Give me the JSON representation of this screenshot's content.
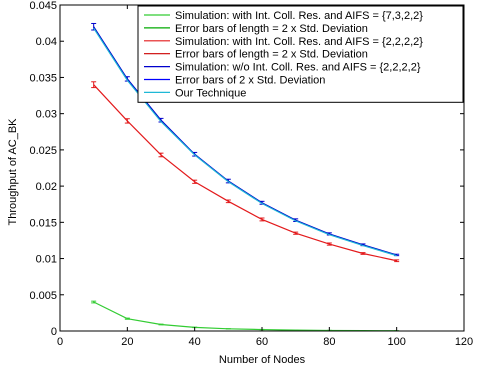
{
  "chart_data": {
    "type": "line",
    "title": "",
    "xlabel": "Number of Nodes",
    "ylabel": "Throughput of AC_BK",
    "xlim": [
      0,
      120
    ],
    "ylim": [
      0,
      0.045
    ],
    "xticks": [
      0,
      20,
      40,
      60,
      80,
      100,
      120
    ],
    "yticks": [
      0,
      0.005,
      0.01,
      0.015,
      0.02,
      0.025,
      0.03,
      0.035,
      0.04,
      0.045
    ],
    "xtick_labels": [
      "0",
      "20",
      "40",
      "60",
      "80",
      "100",
      "120"
    ],
    "ytick_labels": [
      "0",
      "0.005",
      "0.01",
      "0.015",
      "0.02",
      "0.025",
      "0.03",
      "0.035",
      "0.04",
      "0.045"
    ],
    "grid": false,
    "legend_position": "top-right",
    "x": [
      10,
      20,
      30,
      40,
      50,
      60,
      70,
      80,
      90,
      100
    ],
    "series": [
      {
        "name": "Simulation: with Int. Coll. Res. and AIFS = {7,3,2,2}",
        "color": "#33cc33",
        "values": [
          0.004,
          0.0017,
          0.0009,
          0.0005,
          0.0003,
          0.0002,
          0.00012,
          8e-05,
          5e-05,
          3e-05
        ],
        "errors": [
          0.00012,
          8e-05,
          5e-05,
          3e-05,
          2e-05,
          2e-05,
          1e-05,
          1e-05,
          1e-05,
          1e-05
        ]
      },
      {
        "name": "Error bars of length = 2 x Std. Deviation",
        "color": "#00aa00",
        "kind": "errorbar-legend"
      },
      {
        "name": "Simulation: with Int. Coll. Res. and AIFS = {2,2,2,2}",
        "color": "#e31a1c",
        "values": [
          0.034,
          0.029,
          0.0243,
          0.0206,
          0.0179,
          0.0154,
          0.0135,
          0.012,
          0.0107,
          0.0097
        ],
        "errors": [
          0.0004,
          0.0003,
          0.00025,
          0.00022,
          0.00018,
          0.0002,
          0.00015,
          0.00015,
          0.00012,
          0.00012
        ]
      },
      {
        "name": "Error bars of length = 2 x Std. Deviation",
        "color": "#cc0000",
        "kind": "errorbar-legend"
      },
      {
        "name": "Simulation: w/o Int. Coll. Res. and AIFS = {2,2,2,2}",
        "color": "#0000cc",
        "values": [
          0.042,
          0.0348,
          0.0291,
          0.0244,
          0.0207,
          0.0177,
          0.0153,
          0.0134,
          0.0119,
          0.0105
        ],
        "errors": [
          0.00045,
          0.0003,
          0.00025,
          0.00025,
          0.00025,
          0.0002,
          0.00018,
          0.00015,
          0.00012,
          0.0001
        ]
      },
      {
        "name": "Error bars of 2 x Std. Deviation",
        "color": "#0000ff",
        "kind": "errorbar-legend"
      },
      {
        "name": "Our Technique",
        "color": "#1fb8d6",
        "values": [
          0.0418,
          0.0346,
          0.0289,
          0.0243,
          0.0206,
          0.0176,
          0.0152,
          0.0133,
          0.0118,
          0.0104
        ]
      }
    ]
  }
}
